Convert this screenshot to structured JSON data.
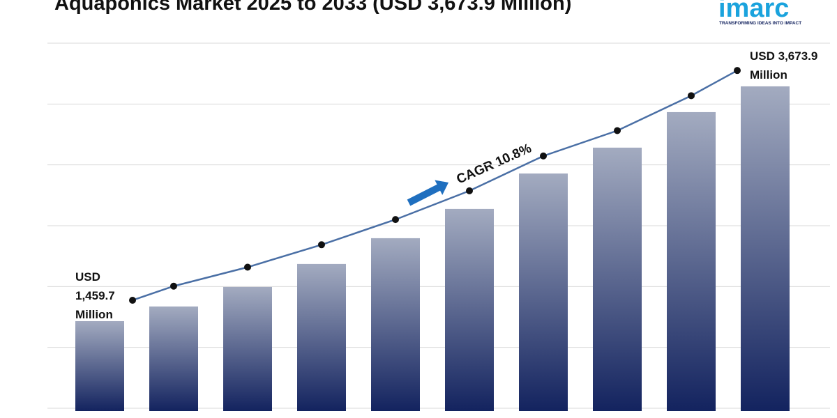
{
  "chart_data": {
    "type": "bar",
    "title": "Aquaponics Market 2025 to 2033 (USD 3,673.9 Million)",
    "brand": "imarc",
    "tagline": "TRANSFORMING IDEAS INTO IMPACT",
    "annotation": "CAGR 10.8%",
    "categories": [
      null,
      null,
      null,
      null,
      null,
      null,
      null,
      null,
      null,
      null
    ],
    "values": [
      1459.7,
      1598,
      1782,
      1999,
      2242,
      2518,
      2852,
      3096,
      3431,
      3673.9
    ],
    "value_labels": [
      "USD 1,459.7 Million",
      null,
      null,
      null,
      null,
      null,
      null,
      null,
      null,
      "USD 3,673.9 Million"
    ],
    "color": "#13235f",
    "line_color": "#4a6fa5",
    "ylim": [
      612,
      4081
    ],
    "grid": true
  }
}
